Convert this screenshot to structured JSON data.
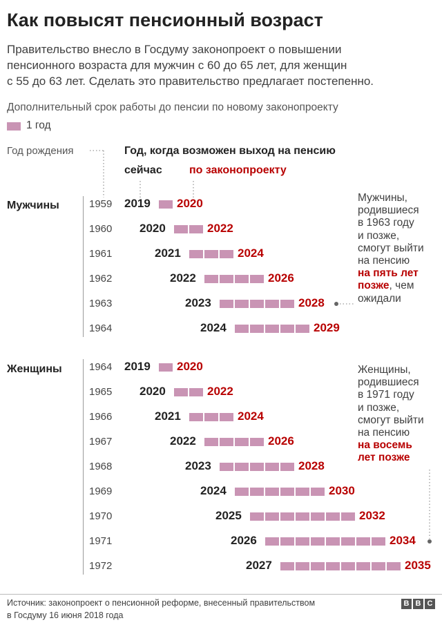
{
  "title": "Как повысят пенсионный возраст",
  "subtitle_lines": [
    "Правительство внесло в Госдуму законопроект о повышении",
    "пенсионного возраста для мужчин с 60 до 65 лет, для женщин",
    "с 55 до 63 лет. Сделать это правительство предлагает постепенно."
  ],
  "legend": {
    "text": "Дополнительный срок работы до пенсии по новому законопроекту",
    "swatch_label": "1 год",
    "swatch_color": "#c994b4"
  },
  "headers": {
    "birth_year": "Год рождения",
    "retirement_year": "Год, когда возможен выход на пенсию",
    "now": "сейчас",
    "by_law": "по законопроекту"
  },
  "colors": {
    "now": "#222222",
    "law": "#b80000",
    "bar": "#c994b4"
  },
  "chart_data": {
    "type": "bar",
    "groups": [
      {
        "name": "Мужчины",
        "rows": [
          {
            "birth_year": 1959,
            "now": 2019,
            "by_law": 2020
          },
          {
            "birth_year": 1960,
            "now": 2020,
            "by_law": 2022
          },
          {
            "birth_year": 1961,
            "now": 2021,
            "by_law": 2024
          },
          {
            "birth_year": 1962,
            "now": 2022,
            "by_law": 2026
          },
          {
            "birth_year": 1963,
            "now": 2023,
            "by_law": 2028
          },
          {
            "birth_year": 1964,
            "now": 2024,
            "by_law": 2029
          }
        ]
      },
      {
        "name": "Женщины",
        "rows": [
          {
            "birth_year": 1964,
            "now": 2019,
            "by_law": 2020
          },
          {
            "birth_year": 1965,
            "now": 2020,
            "by_law": 2022
          },
          {
            "birth_year": 1966,
            "now": 2021,
            "by_law": 2024
          },
          {
            "birth_year": 1967,
            "now": 2022,
            "by_law": 2026
          },
          {
            "birth_year": 1968,
            "now": 2023,
            "by_law": 2028
          },
          {
            "birth_year": 1969,
            "now": 2024,
            "by_law": 2030
          },
          {
            "birth_year": 1970,
            "now": 2025,
            "by_law": 2032
          },
          {
            "birth_year": 1971,
            "now": 2026,
            "by_law": 2034
          },
          {
            "birth_year": 1972,
            "now": 2027,
            "by_law": 2035
          }
        ]
      }
    ]
  },
  "notes": {
    "men": {
      "lines": [
        "Мужчины,",
        "родившиеся",
        "в 1963 году",
        "и позже,",
        "смогут выйти",
        "на пенсию"
      ],
      "emphasis": [
        "на пять лет",
        "позже"
      ],
      "tail": ", чем",
      "after": "ожидали"
    },
    "women": {
      "lines": [
        "Женщины,",
        "родившиеся",
        "в 1971 году",
        "и позже,",
        "смогут выйти",
        "на пенсию"
      ],
      "emphasis": [
        "на восемь",
        "лет позже"
      ]
    }
  },
  "footer": {
    "source_lines": [
      "Источник: законопроект о пенсионной реформе, внесенный правительством",
      "в Госдуму 16 июня 2018 года"
    ],
    "logo_letters": [
      "B",
      "B",
      "C"
    ]
  }
}
